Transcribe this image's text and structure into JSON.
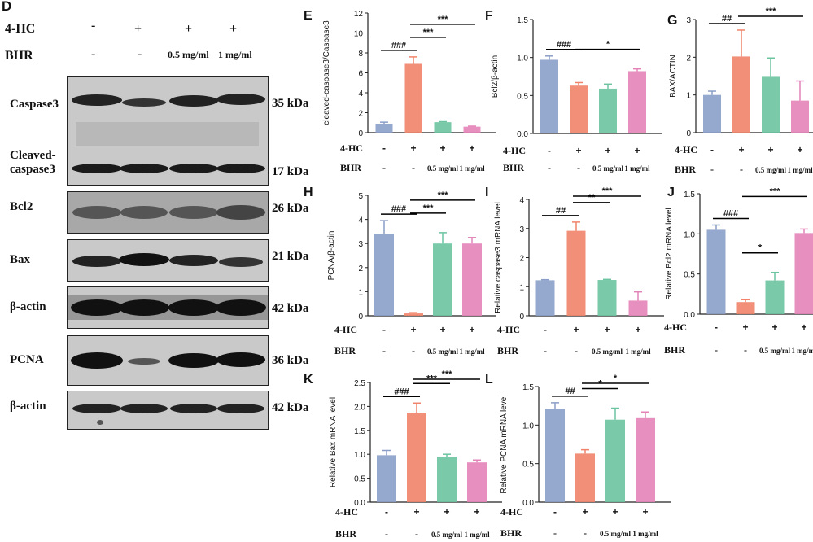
{
  "figure_d": {
    "panel_letter": "D",
    "rows": [
      {
        "label": "4-HC",
        "signs": [
          "-",
          "+",
          "+",
          "+"
        ]
      },
      {
        "label": "BHR",
        "signs": [
          "-",
          "-",
          "0.5 mg/ml",
          "1 mg/ml"
        ]
      }
    ],
    "blots": [
      {
        "labels": [
          "Caspase3",
          "Cleaved-",
          "caspase3"
        ],
        "kda": [
          "35 kDa",
          "17 kDa"
        ]
      },
      {
        "labels": [
          "Bcl2"
        ],
        "kda": [
          "26 kDa"
        ]
      },
      {
        "labels": [
          "Bax"
        ],
        "kda": [
          "21 kDa"
        ]
      },
      {
        "labels": [
          "β-actin"
        ],
        "kda": [
          "42 kDa"
        ]
      },
      {
        "labels": [
          "PCNA"
        ],
        "kda": [
          "36 kDa"
        ]
      },
      {
        "labels": [
          "β-actin"
        ],
        "kda": [
          "42 kDa"
        ]
      }
    ]
  },
  "colors": {
    "ctrl": "#8a9ec8",
    "hc": "#f0836a",
    "low": "#6cc4a0",
    "high": "#e483b8",
    "sig": "#000000"
  },
  "group_rows": {
    "hc_label": "4-HC",
    "hc": [
      "-",
      "+",
      "+",
      "+"
    ],
    "bhr_label": "BHR",
    "bhr": [
      "-",
      "-",
      "0.5 mg/ml",
      "1 mg/ml"
    ]
  },
  "chart_data": [
    {
      "panel": "E",
      "type": "bar",
      "ylabel": "cleaved-caspase3/Caspase3",
      "ylim": [
        0,
        12
      ],
      "ticks": [
        0,
        2,
        4,
        6,
        8,
        10,
        12
      ],
      "values": [
        0.9,
        6.9,
        1.05,
        0.6
      ],
      "errors": [
        0.15,
        0.7,
        0.05,
        0.05
      ],
      "sig": [
        {
          "from": 0,
          "to": 1,
          "label": "###"
        },
        {
          "from": 1,
          "to": 2,
          "label": "***"
        },
        {
          "from": 1,
          "to": 3,
          "label": "***"
        }
      ]
    },
    {
      "panel": "F",
      "type": "bar",
      "ylabel": "Bcl2/β-actin",
      "ylim": [
        0,
        1.5
      ],
      "ticks": [
        0.0,
        0.5,
        1.0,
        1.5
      ],
      "values": [
        0.97,
        0.63,
        0.59,
        0.82
      ],
      "errors": [
        0.05,
        0.04,
        0.06,
        0.03
      ],
      "sig": [
        {
          "from": 0,
          "to": 1,
          "label": "###"
        },
        {
          "from": 1,
          "to": 3,
          "label": "*"
        }
      ]
    },
    {
      "panel": "G",
      "type": "bar",
      "ylabel": "BAX/ACTIN",
      "ylim": [
        0,
        3
      ],
      "ticks": [
        0,
        1,
        2,
        3
      ],
      "values": [
        1.0,
        2.02,
        1.48,
        0.85
      ],
      "errors": [
        0.1,
        0.7,
        0.5,
        0.52
      ],
      "sig": [
        {
          "from": 0,
          "to": 1,
          "label": "##"
        },
        {
          "from": 1,
          "to": 3,
          "label": "***"
        }
      ]
    },
    {
      "panel": "H",
      "type": "bar",
      "ylabel": "PCNA/β-actin",
      "ylim": [
        0,
        5
      ],
      "ticks": [
        0,
        1,
        2,
        3,
        4,
        5
      ],
      "values": [
        3.4,
        0.1,
        3.0,
        3.0
      ],
      "errors": [
        0.55,
        0.03,
        0.45,
        0.25
      ],
      "sig": [
        {
          "from": 0,
          "to": 1,
          "label": "###"
        },
        {
          "from": 1,
          "to": 2,
          "label": "***"
        },
        {
          "from": 1,
          "to": 3,
          "label": "***"
        }
      ]
    },
    {
      "panel": "I",
      "type": "bar",
      "ylabel": "Relative caspase3 mRNA level",
      "ylim": [
        0,
        4
      ],
      "ticks": [
        0,
        1,
        2,
        3,
        4
      ],
      "values": [
        1.22,
        2.92,
        1.23,
        0.52
      ],
      "errors": [
        0.02,
        0.3,
        0.02,
        0.3
      ],
      "sig": [
        {
          "from": 0,
          "to": 1,
          "label": "##"
        },
        {
          "from": 1,
          "to": 2,
          "label": "**"
        },
        {
          "from": 1,
          "to": 3,
          "label": "***"
        }
      ]
    },
    {
      "panel": "J",
      "type": "bar",
      "ylabel": "Relative Bcl2 mRNA level",
      "ylim": [
        0,
        1.5
      ],
      "ticks": [
        0.0,
        0.5,
        1.0,
        1.5
      ],
      "values": [
        1.05,
        0.15,
        0.42,
        1.01
      ],
      "errors": [
        0.06,
        0.03,
        0.1,
        0.05
      ],
      "sig": [
        {
          "from": 0,
          "to": 1,
          "label": "###"
        },
        {
          "from": 1,
          "to": 2,
          "label": "*"
        },
        {
          "from": 1,
          "to": 3,
          "label": "***"
        }
      ]
    },
    {
      "panel": "K",
      "type": "bar",
      "ylabel": "Relative Bax mRNA level",
      "ylim": [
        0,
        2.5
      ],
      "ticks": [
        0.0,
        0.5,
        1.0,
        1.5,
        2.0,
        2.5
      ],
      "values": [
        0.98,
        1.87,
        0.95,
        0.83
      ],
      "errors": [
        0.1,
        0.2,
        0.05,
        0.05
      ],
      "sig": [
        {
          "from": 0,
          "to": 1,
          "label": "###"
        },
        {
          "from": 1,
          "to": 2,
          "label": "***"
        },
        {
          "from": 1,
          "to": 3,
          "label": "***"
        }
      ]
    },
    {
      "panel": "L",
      "type": "bar",
      "ylabel": "Relative PCNA mRNA level",
      "ylim": [
        0,
        1.5
      ],
      "ticks": [
        0.0,
        0.5,
        1.0,
        1.5
      ],
      "values": [
        1.21,
        0.63,
        1.07,
        1.09
      ],
      "errors": [
        0.08,
        0.05,
        0.15,
        0.08
      ],
      "sig": [
        {
          "from": 0,
          "to": 1,
          "label": "##"
        },
        {
          "from": 1,
          "to": 2,
          "label": "*"
        },
        {
          "from": 1,
          "to": 3,
          "label": "*"
        }
      ]
    }
  ]
}
